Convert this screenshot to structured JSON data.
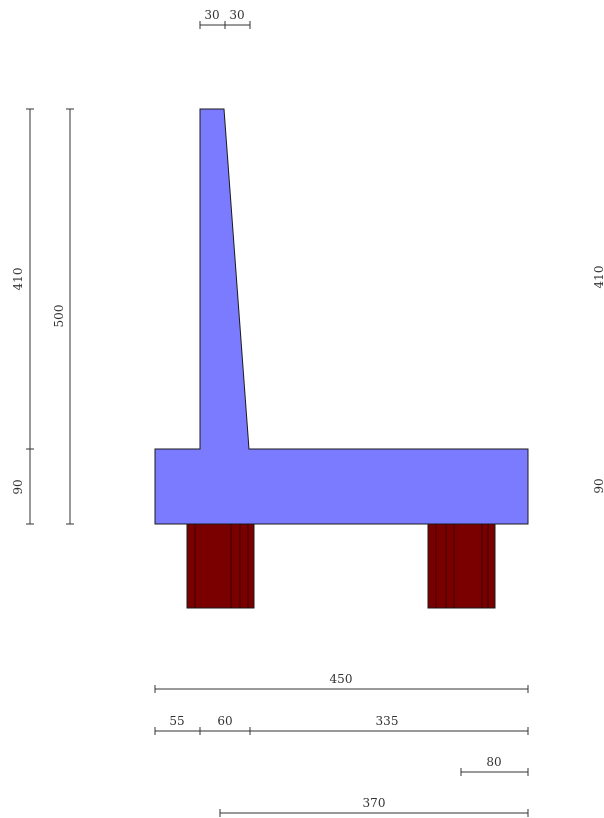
{
  "colors": {
    "concrete": "#7b7bff",
    "pile": "#7a0000",
    "pile_stripe": "#3a0000",
    "outline": "#1a1a1a",
    "dimension": "#333333"
  },
  "dimensions": {
    "stem_top_left": "30",
    "stem_top_right": "30",
    "left_stem_height": "410",
    "left_base_height": "90",
    "left_total_height": "500",
    "right_stem_height": "410",
    "right_base_height": "90",
    "base_width": "450",
    "toe_width": "55",
    "stem_base_width": "60",
    "heel_width": "335",
    "pile_width": "80",
    "pile_span": "370"
  }
}
